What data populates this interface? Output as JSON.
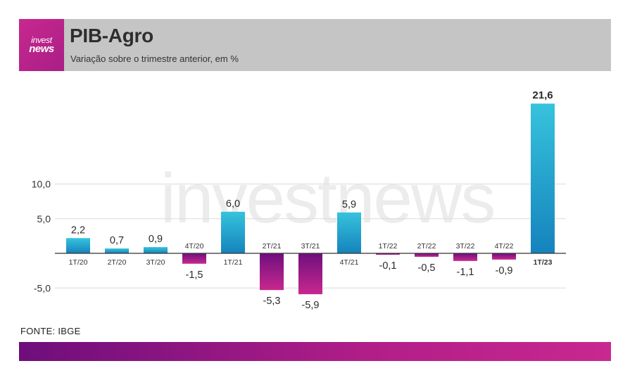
{
  "header": {
    "logo_line1": "invest",
    "logo_line2": "news",
    "title": "PIB-Agro",
    "subtitle": "Variação sobre o trimestre anterior, em %"
  },
  "source": "FONTE: IBGE",
  "colors": {
    "positive_top": "#36c3dc",
    "positive_bottom": "#1583bd",
    "negative_top": "#6e0f7d",
    "negative_bottom": "#c8288f",
    "header_bg": "#c5c5c5",
    "brand_pink": "#c8288f"
  },
  "chart_data": {
    "type": "bar",
    "categories": [
      "1T/20",
      "2T/20",
      "3T/20",
      "4T/20",
      "1T/21",
      "2T/21",
      "3T/21",
      "4T/21",
      "1T/22",
      "2T/22",
      "3T/22",
      "4T/22",
      "1T/23"
    ],
    "values": [
      2.2,
      0.7,
      0.9,
      -1.5,
      6.0,
      -5.3,
      -5.9,
      5.9,
      -0.1,
      -0.5,
      -1.1,
      -0.9,
      21.6
    ],
    "value_labels": [
      "2,2",
      "0,7",
      "0,9",
      "-1,5",
      "6,0",
      "-5,3",
      "-5,9",
      "5,9",
      "-0,1",
      "-0,5",
      "-1,1",
      "-0,9",
      "21,6"
    ],
    "highlighted_index": 12,
    "y_ticks": [
      10,
      5,
      -5
    ],
    "y_tick_labels": [
      "10,0",
      "5,0",
      "-5,0"
    ],
    "ylim": [
      -6,
      22
    ],
    "grid": true,
    "watermark": "investnews"
  }
}
